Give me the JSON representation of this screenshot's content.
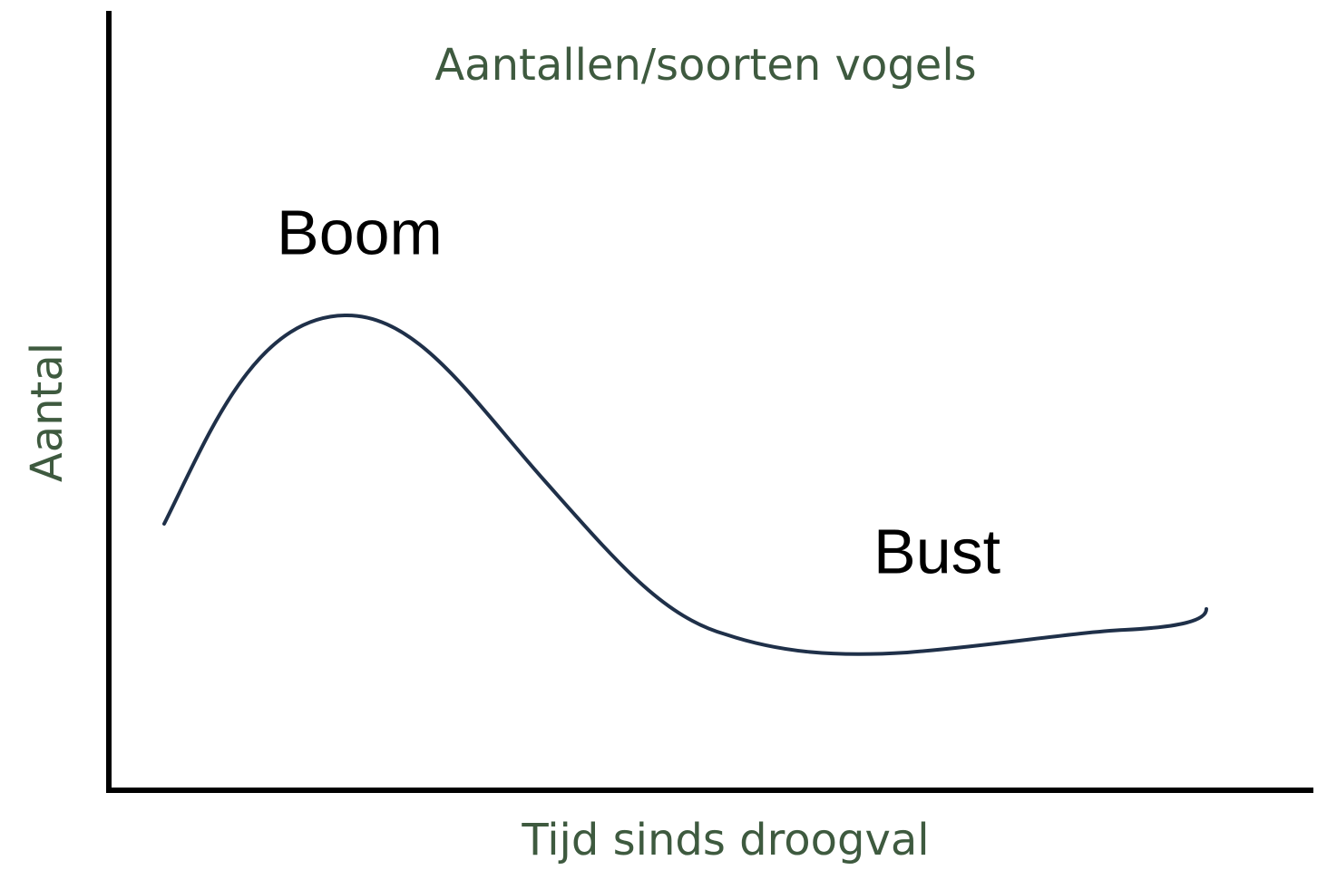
{
  "title": "Aantallen/soorten vogels",
  "y_axis_label": "Aantal",
  "x_axis_label": "Tijd sinds droogval",
  "annotations": [
    "Boom",
    "Bust"
  ]
}
